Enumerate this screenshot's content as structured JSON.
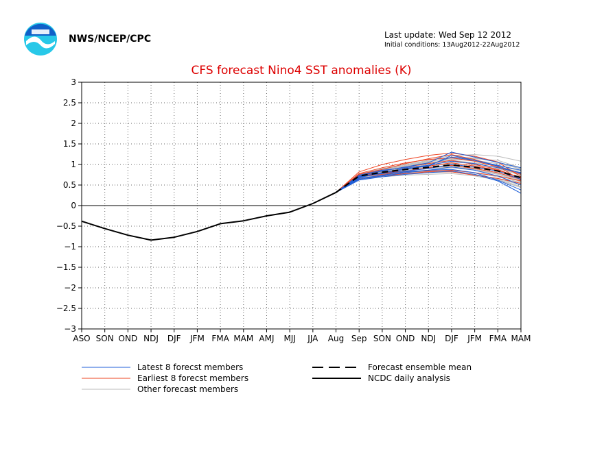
{
  "header": {
    "org": "NWS/NCEP/CPC",
    "last_update": "Last update: Wed Sep 12 2012",
    "initial_conditions": "Initial conditions: 13Aug2012-22Aug2012"
  },
  "colors": {
    "title": "#dd0000",
    "latest": "#1f5fd8",
    "earliest": "#ee4422",
    "other": "#bbbbbb",
    "analysis": "#000000",
    "mean": "#000000",
    "logo_blue": "#1060c8",
    "logo_cyan": "#28c8e8"
  },
  "chart_data": {
    "type": "line",
    "title": "CFS forecast Nino4 SST anomalies (K)",
    "xlabel": "",
    "ylabel": "",
    "ylim": [
      -3,
      3
    ],
    "yticks": [
      3,
      2.5,
      2,
      1.5,
      1,
      0.5,
      0,
      -0.5,
      -1,
      -1.5,
      -2,
      -2.5,
      -3
    ],
    "ytick_labels": [
      "3",
      "2.5",
      "2",
      "1.5",
      "1",
      "0.5",
      "0",
      "−0.5",
      "−1",
      "−1.5",
      "−2",
      "−2.5",
      "−3"
    ],
    "categories": [
      "ASO",
      "SON",
      "OND",
      "NDJ",
      "DJF",
      "JFM",
      "FMA",
      "MAM",
      "AMJ",
      "MJJ",
      "JJA",
      "Aug",
      "Sep",
      "SON",
      "OND",
      "NDJ",
      "DJF",
      "JFM",
      "FMA",
      "MAM"
    ],
    "grid": true,
    "zero_line": true,
    "analysis": {
      "name": "NCDC daily analysis",
      "values": [
        -0.38,
        -0.56,
        -0.72,
        -0.84,
        -0.77,
        -0.63,
        -0.44,
        -0.37,
        -0.25,
        -0.16,
        0.05,
        0.32
      ]
    },
    "ensemble_mean": {
      "name": "Forecast ensemble mean",
      "start_index": 11,
      "values": [
        0.32,
        0.72,
        0.81,
        0.88,
        0.93,
        0.99,
        0.93,
        0.84,
        0.68
      ]
    },
    "member_groups": [
      {
        "name": "Latest 8 forecst members",
        "color_key": "latest",
        "start_index": 11,
        "members": [
          [
            0.32,
            0.68,
            0.8,
            0.88,
            0.98,
            1.18,
            1.1,
            0.96,
            0.78
          ],
          [
            0.32,
            0.72,
            0.84,
            0.94,
            1.04,
            1.3,
            1.18,
            1.05,
            0.92
          ],
          [
            0.32,
            0.64,
            0.72,
            0.8,
            0.86,
            0.94,
            0.86,
            0.72,
            0.5
          ],
          [
            0.32,
            0.7,
            0.78,
            0.84,
            0.9,
            1.0,
            0.94,
            0.84,
            0.64
          ],
          [
            0.32,
            0.66,
            0.74,
            0.82,
            0.86,
            0.88,
            0.8,
            0.62,
            0.38
          ],
          [
            0.32,
            0.74,
            0.86,
            0.92,
            0.98,
            1.08,
            1.02,
            0.92,
            0.8
          ],
          [
            0.32,
            0.62,
            0.7,
            0.76,
            0.8,
            0.84,
            0.76,
            0.6,
            0.3
          ],
          [
            0.32,
            0.7,
            0.8,
            0.9,
            0.96,
            1.22,
            1.1,
            0.98,
            0.86
          ]
        ]
      },
      {
        "name": "Earliest 8 forecst members",
        "color_key": "earliest",
        "start_index": 11,
        "members": [
          [
            0.32,
            0.82,
            1.0,
            1.12,
            1.22,
            1.28,
            1.2,
            1.06,
            0.7
          ],
          [
            0.32,
            0.76,
            0.88,
            1.02,
            1.14,
            1.24,
            1.12,
            0.96,
            0.62
          ],
          [
            0.32,
            0.7,
            0.8,
            0.9,
            0.96,
            1.04,
            0.96,
            0.86,
            0.68
          ],
          [
            0.32,
            0.74,
            0.84,
            0.94,
            1.02,
            1.1,
            1.0,
            0.88,
            0.66
          ],
          [
            0.32,
            0.66,
            0.72,
            0.78,
            0.82,
            0.82,
            0.74,
            0.66,
            0.54
          ],
          [
            0.32,
            0.78,
            0.92,
            1.04,
            1.12,
            1.16,
            1.08,
            0.94,
            0.76
          ],
          [
            0.32,
            0.7,
            0.76,
            0.82,
            0.84,
            0.86,
            0.8,
            0.72,
            0.6
          ],
          [
            0.32,
            0.72,
            0.8,
            0.84,
            0.92,
            0.98,
            0.9,
            0.8,
            0.64
          ]
        ]
      },
      {
        "name": "Other forecast members",
        "color_key": "other",
        "start_index": 11,
        "members": [
          [
            0.32,
            0.72,
            0.86,
            0.96,
            1.06,
            1.16,
            1.14,
            1.1,
            0.92
          ],
          [
            0.32,
            0.7,
            0.78,
            0.84,
            0.9,
            0.94,
            0.88,
            0.78,
            0.6
          ],
          [
            0.32,
            0.68,
            0.76,
            0.8,
            0.84,
            0.86,
            0.8,
            0.7,
            0.56
          ],
          [
            0.32,
            0.74,
            0.88,
            1.0,
            1.1,
            1.22,
            1.24,
            1.2,
            1.08
          ],
          [
            0.32,
            0.66,
            0.74,
            0.78,
            0.82,
            0.84,
            0.76,
            0.64,
            0.46
          ],
          [
            0.32,
            0.76,
            0.9,
            1.0,
            1.08,
            1.14,
            1.08,
            0.98,
            0.84
          ],
          [
            0.32,
            0.7,
            0.82,
            0.9,
            0.96,
            1.02,
            0.98,
            0.9,
            0.74
          ],
          [
            0.32,
            0.68,
            0.76,
            0.82,
            0.86,
            0.92,
            0.86,
            0.76,
            0.58
          ],
          [
            0.32,
            0.72,
            0.84,
            0.94,
            1.02,
            1.1,
            1.04,
            0.96,
            0.8
          ],
          [
            0.32,
            0.66,
            0.72,
            0.76,
            0.8,
            0.82,
            0.74,
            0.66,
            0.5
          ],
          [
            0.32,
            0.74,
            0.86,
            0.98,
            1.06,
            1.18,
            1.16,
            1.06,
            0.88
          ],
          [
            0.32,
            0.7,
            0.8,
            0.88,
            0.94,
            0.98,
            0.92,
            0.84,
            0.68
          ],
          [
            0.32,
            0.68,
            0.78,
            0.86,
            0.92,
            0.96,
            0.9,
            0.8,
            0.62
          ],
          [
            0.32,
            0.72,
            0.82,
            0.92,
            1.0,
            1.06,
            1.02,
            0.92,
            0.76
          ],
          [
            0.32,
            0.64,
            0.7,
            0.74,
            0.76,
            0.78,
            0.72,
            0.62,
            0.44
          ],
          [
            0.32,
            0.76,
            0.88,
            0.96,
            1.04,
            1.12,
            1.1,
            1.02,
            0.9
          ]
        ]
      }
    ],
    "legend": {
      "position": "bottom",
      "items": [
        {
          "label": "Latest 8 forecst members",
          "style": "latest"
        },
        {
          "label": "Earliest 8 forecst members",
          "style": "earliest"
        },
        {
          "label": "Other forecast members",
          "style": "other"
        },
        {
          "label": "Forecast ensemble mean",
          "style": "mean"
        },
        {
          "label": "NCDC daily analysis",
          "style": "analysis"
        }
      ]
    }
  }
}
